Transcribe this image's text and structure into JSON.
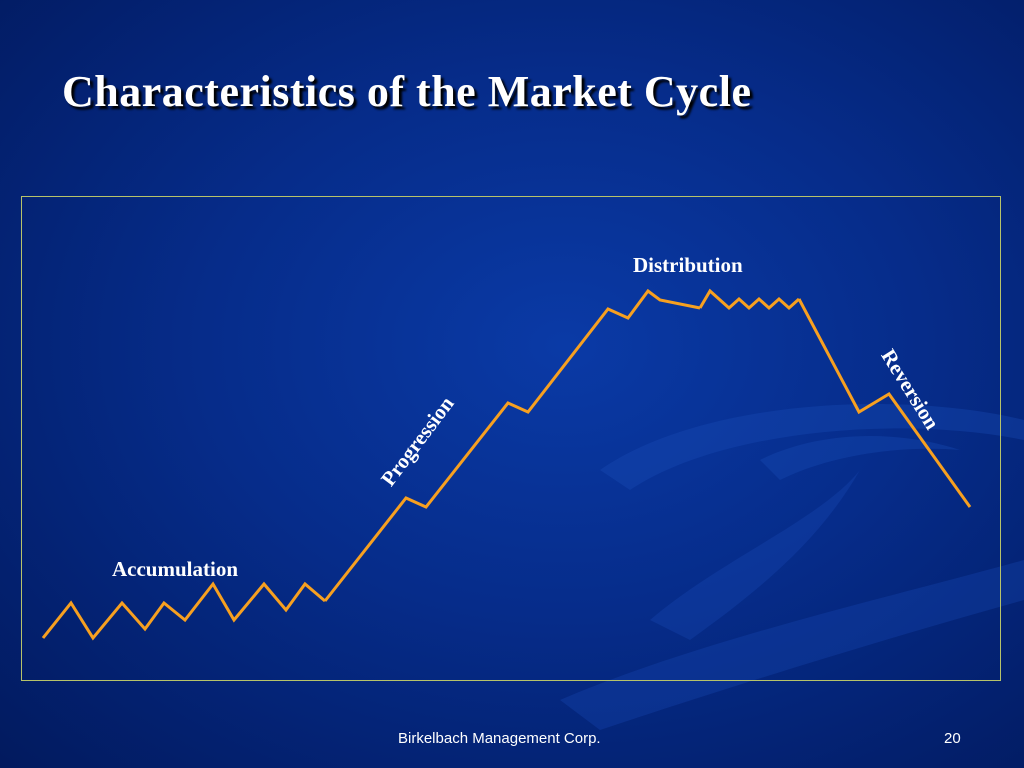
{
  "slide": {
    "title": "Characteristics of the Market Cycle",
    "footer_company": "Birkelbach Management Corp.",
    "page_number": "20"
  },
  "diagram": {
    "labels": {
      "accumulation": "Accumulation",
      "progression": "Progression",
      "distribution": "Distribution",
      "reversion": "Reversion"
    },
    "colors": {
      "line": "#f7a020",
      "frame": "#b7c36a",
      "background": "#062c8a",
      "text": "#ffffff"
    }
  }
}
